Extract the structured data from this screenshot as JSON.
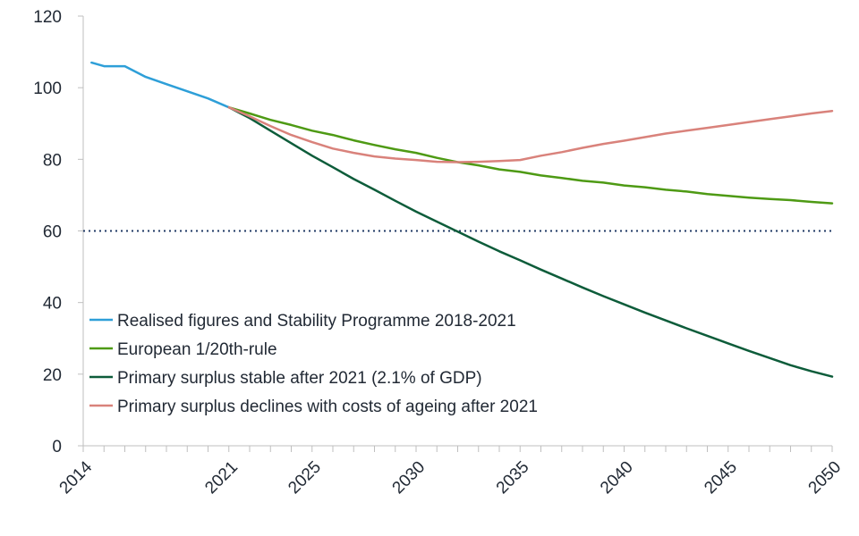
{
  "chart_data": {
    "type": "line",
    "title": "",
    "xlabel": "",
    "ylabel": "",
    "xlim": [
      2014,
      2050
    ],
    "ylim": [
      0,
      120
    ],
    "y_ticks": [
      0,
      20,
      40,
      60,
      80,
      100,
      120
    ],
    "x_ticks": [
      2014,
      2021,
      2025,
      2030,
      2035,
      2040,
      2045,
      2050
    ],
    "x_ticks_labels": [
      "2014",
      "2021",
      "2025",
      "2030",
      "2035",
      "2040",
      "2045",
      "2050"
    ],
    "y_ticks_labels": [
      "0",
      "20",
      "40",
      "60",
      "80",
      "100",
      "120"
    ],
    "grid": false,
    "legend_position": "bottom-left",
    "reference_line": {
      "y": 60,
      "style": "dotted",
      "color": "#1f3864"
    },
    "series": [
      {
        "name": "Realised figures and Stability Programme 2018-2021",
        "color": "#2e9fd8",
        "x": [
          2014.4,
          2015,
          2016,
          2017,
          2018,
          2019,
          2020,
          2021
        ],
        "y": [
          107,
          106,
          106,
          103,
          101,
          99,
          97,
          94.5
        ]
      },
      {
        "name": "European 1/20th-rule",
        "color": "#4e9a14",
        "x": [
          2021,
          2022,
          2023,
          2024,
          2025,
          2026,
          2027,
          2028,
          2029,
          2030,
          2031,
          2032,
          2033,
          2034,
          2035,
          2036,
          2037,
          2038,
          2039,
          2040,
          2041,
          2042,
          2043,
          2044,
          2045,
          2046,
          2047,
          2048,
          2049,
          2050
        ],
        "y": [
          94.5,
          92.8,
          91.0,
          89.6,
          88.0,
          86.8,
          85.3,
          84.0,
          82.8,
          81.8,
          80.4,
          79.2,
          78.3,
          77.2,
          76.5,
          75.5,
          74.8,
          74.0,
          73.5,
          72.7,
          72.2,
          71.5,
          71.0,
          70.3,
          69.8,
          69.3,
          68.9,
          68.6,
          68.1,
          67.7
        ]
      },
      {
        "name": "Primary surplus stable after 2021 (2.1% of GDP)",
        "color": "#0d5c3a",
        "x": [
          2021,
          2022,
          2023,
          2024,
          2025,
          2026,
          2027,
          2028,
          2029,
          2030,
          2031,
          2032,
          2033,
          2034,
          2035,
          2036,
          2037,
          2038,
          2039,
          2040,
          2041,
          2042,
          2043,
          2044,
          2045,
          2046,
          2047,
          2048,
          2049,
          2050
        ],
        "y": [
          94.5,
          91.5,
          88.0,
          84.5,
          81.0,
          77.8,
          74.5,
          71.5,
          68.4,
          65.4,
          62.6,
          59.8,
          57.0,
          54.3,
          51.8,
          49.2,
          46.7,
          44.2,
          41.8,
          39.5,
          37.2,
          35.0,
          32.8,
          30.7,
          28.6,
          26.5,
          24.5,
          22.5,
          20.8,
          19.3
        ]
      },
      {
        "name": "Primary surplus declines with costs of ageing after 2021",
        "color": "#d9827b",
        "x": [
          2021,
          2022,
          2023,
          2024,
          2025,
          2026,
          2027,
          2028,
          2029,
          2030,
          2031,
          2032,
          2033,
          2034,
          2035,
          2036,
          2037,
          2038,
          2039,
          2040,
          2041,
          2042,
          2043,
          2044,
          2045,
          2046,
          2047,
          2048,
          2049,
          2050
        ],
        "y": [
          94.5,
          92.0,
          89.3,
          86.8,
          84.8,
          83.0,
          81.8,
          80.8,
          80.2,
          79.8,
          79.3,
          79.2,
          79.3,
          79.5,
          79.8,
          81.0,
          82.0,
          83.2,
          84.3,
          85.2,
          86.2,
          87.2,
          88.0,
          88.8,
          89.6,
          90.4,
          91.2,
          92.0,
          92.8,
          93.5
        ]
      }
    ]
  }
}
